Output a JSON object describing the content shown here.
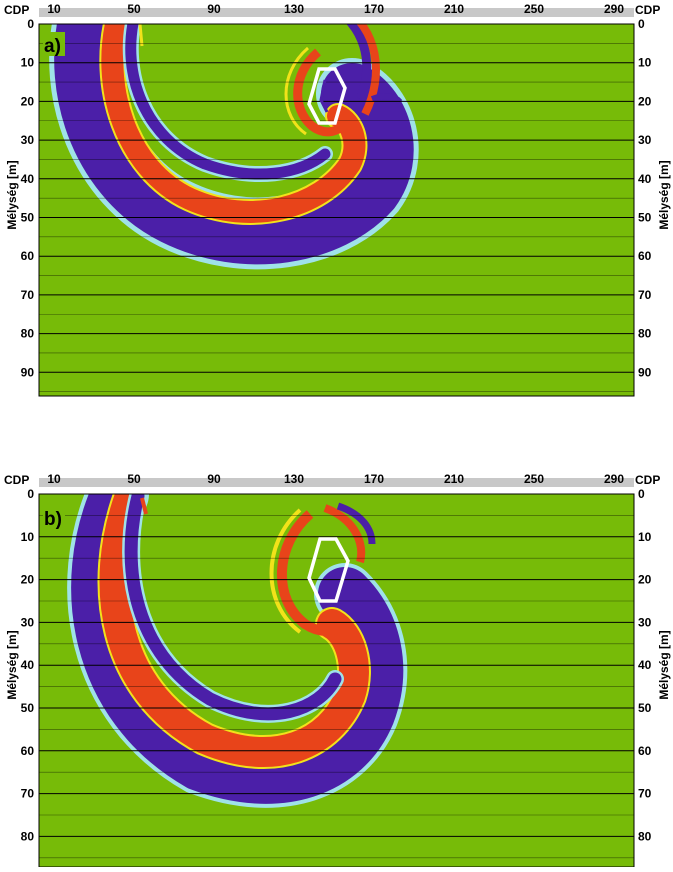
{
  "colors": {
    "background": "#77bb08",
    "red": "#e8441a",
    "blue": "#4b1fa8",
    "halo_cyan": "#9fe2e8",
    "edge_yellow": "#f2e21a",
    "topbar": "#c8c8c8",
    "line": "#000000",
    "polygon": "#ffffff"
  },
  "x_header": {
    "cdp_label": "CDP",
    "ticks": [
      "10",
      "50",
      "90",
      "130",
      "170",
      "210",
      "250",
      "290"
    ]
  },
  "depth_axis": {
    "label": "Mélység [m]"
  },
  "panels": [
    {
      "label": "a)",
      "depth_ticks": [
        "0",
        "10",
        "20",
        "30",
        "40",
        "50",
        "60",
        "70",
        "80",
        "90"
      ]
    },
    {
      "label": "b)",
      "depth_ticks": [
        "0",
        "10",
        "20",
        "30",
        "40",
        "50",
        "60",
        "70",
        "80"
      ]
    }
  ]
}
